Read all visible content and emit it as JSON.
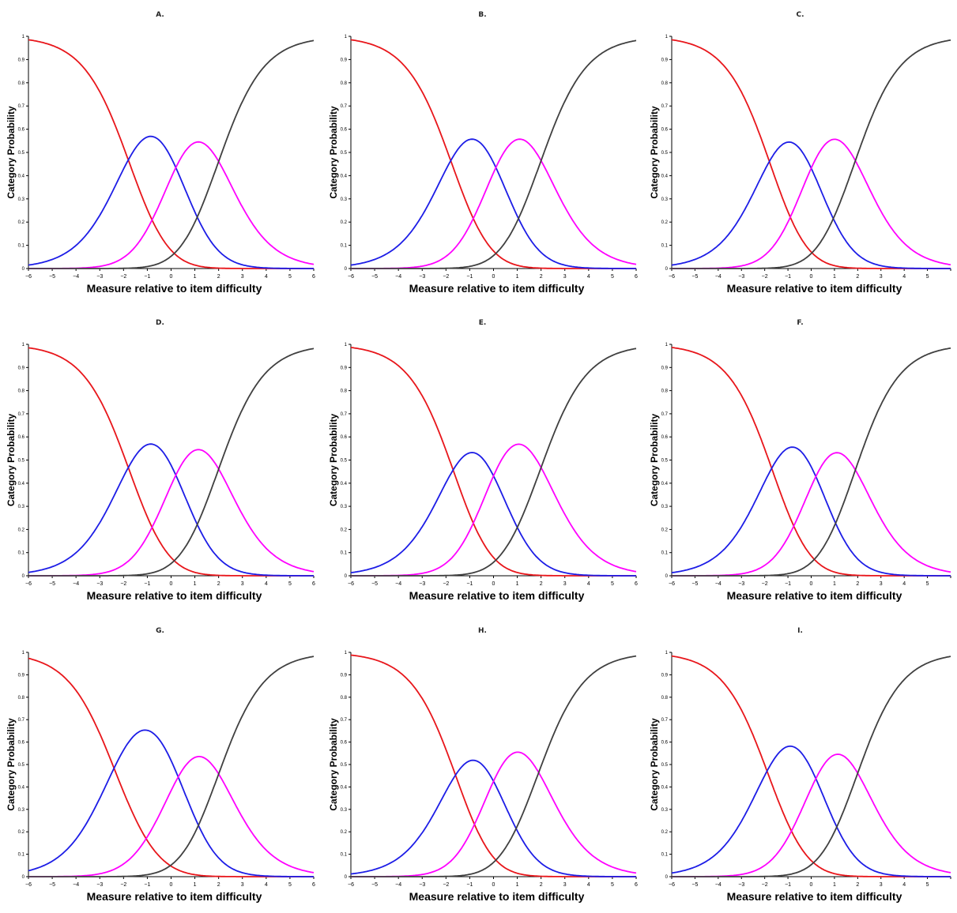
{
  "chart_data": [
    {
      "title": "A.",
      "type": "line",
      "xlabel": "Measure relative to item difficulty",
      "ylabel": "Category Probability",
      "xlim": [
        -6,
        6
      ],
      "ylim": [
        0,
        1
      ],
      "xticks": [
        "−6",
        "−5",
        "−4",
        "−3",
        "−2",
        "−1",
        "0",
        "1",
        "2",
        "3",
        "4",
        "5",
        "6"
      ],
      "yticks": [
        "0",
        "0.1",
        "0.2",
        "0.3",
        "0.4",
        "0.5",
        "0.6",
        "0.7",
        "0.8",
        "0.9",
        "1"
      ],
      "thresholds": [
        -1.8,
        0.2,
        2.0
      ],
      "colors": [
        "#e8161b",
        "#1d1de6",
        "#ff00ff",
        "#404040"
      ]
    },
    {
      "title": "B.",
      "type": "line",
      "xlabel": "Measure relative to item difficulty",
      "ylabel": "Category Probability",
      "xlim": [
        -6,
        6
      ],
      "ylim": [
        0,
        1
      ],
      "xticks": [
        "−6",
        "−5",
        "−4",
        "−3",
        "−2",
        "−1",
        "0",
        "1",
        "2",
        "3",
        "4",
        "5",
        "6"
      ],
      "yticks": [
        "0",
        "0.1",
        "0.2",
        "0.3",
        "0.4",
        "0.5",
        "0.6",
        "0.7",
        "0.8",
        "0.9",
        "1"
      ],
      "thresholds": [
        -1.8,
        0.1,
        2.0
      ],
      "colors": [
        "#e8161b",
        "#1d1de6",
        "#ff00ff",
        "#404040"
      ]
    },
    {
      "title": "C.",
      "type": "line",
      "xlabel": "Measure relative to item difficulty",
      "ylabel": "Category Probability",
      "xlim": [
        -6,
        6
      ],
      "ylim": [
        0,
        1
      ],
      "xticks": [
        "−6",
        "−5",
        "−4",
        "−3",
        "−2",
        "−1",
        "0",
        "1",
        "2",
        "3",
        "4",
        "5",
        ""
      ],
      "yticks": [
        "0",
        "0.1",
        "0.2",
        "0.3",
        "0.4",
        "0.5",
        "0.6",
        "0.7",
        "0.8",
        "0.9",
        "1"
      ],
      "thresholds": [
        -1.8,
        0.0,
        1.9
      ],
      "colors": [
        "#e8161b",
        "#1d1de6",
        "#ff00ff",
        "#404040"
      ]
    },
    {
      "title": "D.",
      "type": "line",
      "xlabel": "Measure relative to item difficulty",
      "ylabel": "Category Probability",
      "xlim": [
        -6,
        6
      ],
      "ylim": [
        0,
        1
      ],
      "xticks": [
        "−6",
        "−5",
        "−4",
        "−3",
        "−2",
        "−1",
        "0",
        "1",
        "2",
        "3",
        "4",
        "5",
        "6"
      ],
      "yticks": [
        "0",
        "0.1",
        "0.2",
        "0.3",
        "0.4",
        "0.5",
        "0.6",
        "0.7",
        "0.8",
        "0.9",
        "1"
      ],
      "thresholds": [
        -1.8,
        0.2,
        2.0
      ],
      "colors": [
        "#e8161b",
        "#1d1de6",
        "#ff00ff",
        "#404040"
      ]
    },
    {
      "title": "E.",
      "type": "line",
      "xlabel": "Measure relative to item difficulty",
      "ylabel": "Category Probability",
      "xlim": [
        -6,
        6
      ],
      "ylim": [
        0,
        1
      ],
      "xticks": [
        "−6",
        "−5",
        "−4",
        "−3",
        "−2",
        "−1",
        "0",
        "1",
        "2",
        "3",
        "4",
        "5",
        "6"
      ],
      "yticks": [
        "0",
        "0.1",
        "0.2",
        "0.3",
        "0.4",
        "0.5",
        "0.6",
        "0.7",
        "0.8",
        "0.9",
        "1"
      ],
      "thresholds": [
        -1.7,
        0.0,
        2.0
      ],
      "colors": [
        "#e8161b",
        "#1d1de6",
        "#ff00ff",
        "#404040"
      ]
    },
    {
      "title": "F.",
      "type": "line",
      "xlabel": "Measure relative to item difficulty",
      "ylabel": "Category Probability",
      "xlim": [
        -6,
        6
      ],
      "ylim": [
        0,
        1
      ],
      "xticks": [
        "−6",
        "−5",
        "−4",
        "−3",
        "−2",
        "−1",
        "0",
        "1",
        "2",
        "3",
        "4",
        "5",
        ""
      ],
      "yticks": [
        "0",
        "0.1",
        "0.2",
        "0.3",
        "0.4",
        "0.5",
        "0.6",
        "0.7",
        "0.8",
        "0.9",
        "1"
      ],
      "thresholds": [
        -1.7,
        0.2,
        1.9
      ],
      "colors": [
        "#e8161b",
        "#1d1de6",
        "#ff00ff",
        "#404040"
      ]
    },
    {
      "title": "G.",
      "type": "line",
      "xlabel": "Measure relative to item difficulty",
      "ylabel": "Category Probability",
      "xlim": [
        -6,
        6
      ],
      "ylim": [
        0,
        1
      ],
      "xticks": [
        "−6",
        "−5",
        "−4",
        "−3",
        "−2",
        "−1",
        "0",
        "1",
        "2",
        "3",
        "4",
        "5",
        "6"
      ],
      "yticks": [
        "0",
        "0.1",
        "0.2",
        "0.3",
        "0.4",
        "0.5",
        "0.6",
        "0.7",
        "0.8",
        "0.9",
        "1"
      ],
      "thresholds": [
        -2.4,
        0.3,
        2.0
      ],
      "colors": [
        "#e8161b",
        "#1d1de6",
        "#ff00ff",
        "#404040"
      ]
    },
    {
      "title": "H.",
      "type": "line",
      "xlabel": "Measure relative to item difficulty",
      "ylabel": "Category Probability",
      "xlim": [
        -6,
        6
      ],
      "ylim": [
        0,
        1
      ],
      "xticks": [
        "−6",
        "−5",
        "−4",
        "−3",
        "−2",
        "−1",
        "0",
        "1",
        "2",
        "3",
        "4",
        "5",
        "6"
      ],
      "yticks": [
        "0",
        "0.1",
        "0.2",
        "0.3",
        "0.4",
        "0.5",
        "0.6",
        "0.7",
        "0.8",
        "0.9",
        "1"
      ],
      "thresholds": [
        -1.6,
        0.0,
        1.9
      ],
      "colors": [
        "#e8161b",
        "#1d1de6",
        "#ff00ff",
        "#404040"
      ]
    },
    {
      "title": "I.",
      "type": "line",
      "xlabel": "Measure relative to item difficulty",
      "ylabel": "Category Probability",
      "xlim": [
        -6,
        6
      ],
      "ylim": [
        0,
        1
      ],
      "xticks": [
        "−6",
        "−5",
        "−4",
        "−3",
        "−2",
        "−1",
        "0",
        "1",
        "2",
        "3",
        "4",
        "5",
        ""
      ],
      "yticks": [
        "0",
        "0.1",
        "0.2",
        "0.3",
        "0.4",
        "0.5",
        "0.6",
        "0.7",
        "0.8",
        "0.9",
        "1"
      ],
      "thresholds": [
        -1.9,
        0.2,
        2.0
      ],
      "colors": [
        "#e8161b",
        "#1d1de6",
        "#ff00ff",
        "#404040"
      ]
    }
  ]
}
